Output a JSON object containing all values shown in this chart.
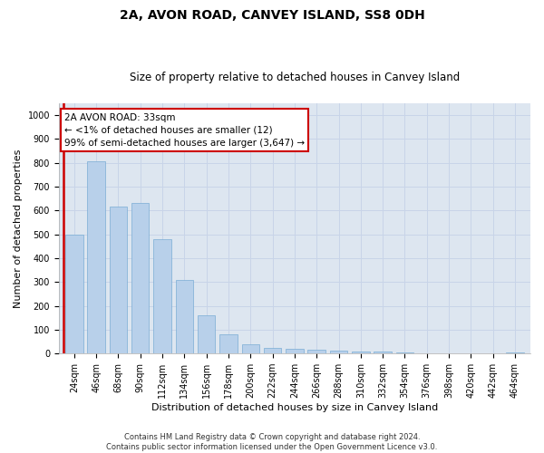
{
  "title": "2A, AVON ROAD, CANVEY ISLAND, SS8 0DH",
  "subtitle": "Size of property relative to detached houses in Canvey Island",
  "xlabel": "Distribution of detached houses by size in Canvey Island",
  "ylabel": "Number of detached properties",
  "footer_line1": "Contains HM Land Registry data © Crown copyright and database right 2024.",
  "footer_line2": "Contains public sector information licensed under the Open Government Licence v3.0.",
  "categories": [
    "24sqm",
    "46sqm",
    "68sqm",
    "90sqm",
    "112sqm",
    "134sqm",
    "156sqm",
    "178sqm",
    "200sqm",
    "222sqm",
    "244sqm",
    "266sqm",
    "288sqm",
    "310sqm",
    "332sqm",
    "354sqm",
    "376sqm",
    "398sqm",
    "420sqm",
    "442sqm",
    "464sqm"
  ],
  "values": [
    500,
    805,
    615,
    630,
    480,
    308,
    160,
    80,
    38,
    22,
    18,
    15,
    12,
    8,
    7,
    3,
    2,
    1,
    1,
    0,
    5
  ],
  "bar_color": "#b8d0ea",
  "bar_edge_color": "#7aadd4",
  "annotation_text_line1": "2A AVON ROAD: 33sqm",
  "annotation_text_line2": "← <1% of detached houses are smaller (12)",
  "annotation_text_line3": "99% of semi-detached houses are larger (3,647) →",
  "annotation_box_color": "#ffffff",
  "annotation_box_edge_color": "#cc0000",
  "vline_color": "#cc0000",
  "ylim": [
    0,
    1050
  ],
  "yticks": [
    0,
    100,
    200,
    300,
    400,
    500,
    600,
    700,
    800,
    900,
    1000
  ],
  "grid_color": "#c8d4e8",
  "background_color": "#dde6f0",
  "title_fontsize": 10,
  "subtitle_fontsize": 8.5,
  "tick_fontsize": 7,
  "ylabel_fontsize": 8,
  "xlabel_fontsize": 8,
  "annotation_fontsize": 7.5,
  "footer_fontsize": 6
}
